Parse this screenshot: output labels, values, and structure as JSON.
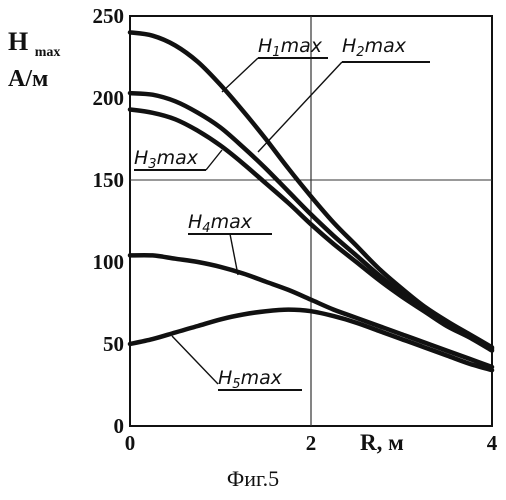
{
  "figure": {
    "caption": "Фиг.5"
  },
  "chart_data": {
    "type": "line",
    "ylabel_main": "H",
    "ylabel_sub": "max",
    "ylabel_unit": "А/м",
    "xlabel": "R, м",
    "xlim": [
      0,
      4
    ],
    "ylim": [
      0,
      250
    ],
    "x_ticks": [
      {
        "value": 0,
        "label": "0"
      },
      {
        "value": 2,
        "label": "2"
      },
      {
        "value": 4,
        "label": "4"
      }
    ],
    "y_ticks": [
      {
        "value": 0,
        "label": "0"
      },
      {
        "value": 50,
        "label": "50"
      },
      {
        "value": 100,
        "label": "100"
      },
      {
        "value": 150,
        "label": "150"
      },
      {
        "value": 200,
        "label": "200"
      },
      {
        "value": 250,
        "label": "250"
      }
    ],
    "grid": {
      "horizontal_at": [
        150
      ],
      "vertical_at": [
        2
      ]
    },
    "series": [
      {
        "name": "H1max",
        "label_main": "H",
        "label_sub": "1",
        "label_tail": "max",
        "x": [
          0,
          0.25,
          0.5,
          0.75,
          1.0,
          1.25,
          1.5,
          1.75,
          2.0,
          2.25,
          2.5,
          2.75,
          3.0,
          3.25,
          3.5,
          3.75,
          4.0
        ],
        "y": [
          240,
          238,
          232,
          222,
          208,
          192,
          175,
          157,
          140,
          124,
          110,
          96,
          84,
          73,
          64,
          56,
          48
        ]
      },
      {
        "name": "H2max",
        "label_main": "H",
        "label_sub": "2",
        "label_tail": "max",
        "x": [
          0,
          0.25,
          0.5,
          0.75,
          1.0,
          1.25,
          1.5,
          1.75,
          2.0,
          2.25,
          2.5,
          2.75,
          3.0,
          3.25,
          3.5,
          3.75,
          4.0
        ],
        "y": [
          203,
          202,
          198,
          191,
          182,
          170,
          157,
          143,
          129,
          116,
          104,
          92,
          81,
          71,
          62,
          55,
          47
        ]
      },
      {
        "name": "H3max",
        "label_main": "H",
        "label_sub": "3",
        "label_tail": "max",
        "x": [
          0,
          0.25,
          0.5,
          0.75,
          1.0,
          1.25,
          1.5,
          1.75,
          2.0,
          2.25,
          2.5,
          2.75,
          3.0,
          3.25,
          3.5,
          3.75,
          4.0
        ],
        "y": [
          193,
          191,
          187,
          180,
          171,
          160,
          148,
          136,
          123,
          111,
          100,
          89,
          79,
          70,
          61,
          54,
          46
        ]
      },
      {
        "name": "H4max",
        "label_main": "H",
        "label_sub": "4",
        "label_tail": "max",
        "x": [
          0,
          0.25,
          0.5,
          0.75,
          1.0,
          1.25,
          1.5,
          1.75,
          2.0,
          2.25,
          2.5,
          2.75,
          3.0,
          3.25,
          3.5,
          3.75,
          4.0
        ],
        "y": [
          104,
          104,
          102,
          100,
          97,
          93,
          88,
          83,
          77,
          71,
          66,
          61,
          56,
          51,
          46,
          41,
          36
        ]
      },
      {
        "name": "H5max",
        "label_main": "H",
        "label_sub": "5",
        "label_tail": "max",
        "x": [
          0,
          0.25,
          0.5,
          0.75,
          1.0,
          1.25,
          1.5,
          1.75,
          2.0,
          2.25,
          2.5,
          2.75,
          3.0,
          3.25,
          3.5,
          3.75,
          4.0
        ],
        "y": [
          50,
          53,
          57,
          61,
          65,
          68,
          70,
          71,
          70,
          67,
          63,
          58,
          53,
          48,
          43,
          38,
          34
        ]
      }
    ]
  }
}
